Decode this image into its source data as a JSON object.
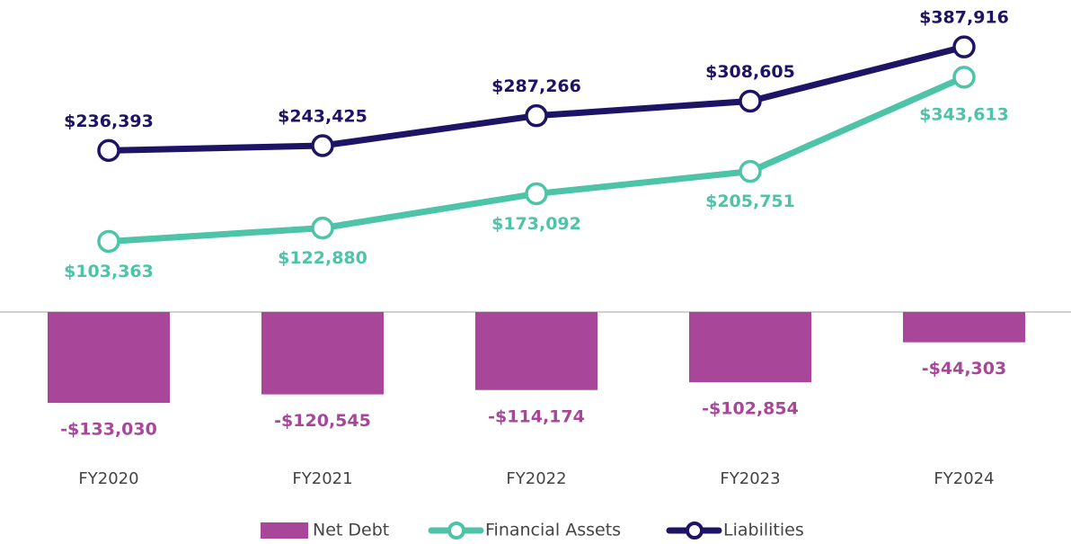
{
  "chart_data": {
    "type": "combo",
    "categories": [
      "FY2020",
      "FY2021",
      "FY2022",
      "FY2023",
      "FY2024"
    ],
    "series": [
      {
        "name": "Net Debt",
        "type": "bar",
        "color": "#a8479a",
        "values": [
          -133030,
          -120545,
          -114174,
          -102854,
          -44303
        ],
        "value_labels": [
          "-$133,030",
          "-$120,545",
          "-$114,174",
          "-$102,854",
          "-$44,303"
        ]
      },
      {
        "name": "Financial Assets",
        "type": "line",
        "color": "#4dc4a8",
        "values": [
          103363,
          122880,
          173092,
          205751,
          343613
        ],
        "value_labels": [
          "$103,363",
          "$122,880",
          "$173,092",
          "$205,751",
          "$343,613"
        ]
      },
      {
        "name": "Liabilities",
        "type": "line",
        "color": "#1e1466",
        "values": [
          236393,
          243425,
          287266,
          308605,
          387916
        ],
        "value_labels": [
          "$236,393",
          "$243,425",
          "$287,266",
          "$308,605",
          "$387,916"
        ]
      }
    ],
    "ylim": [
      -200000,
      450000
    ]
  }
}
